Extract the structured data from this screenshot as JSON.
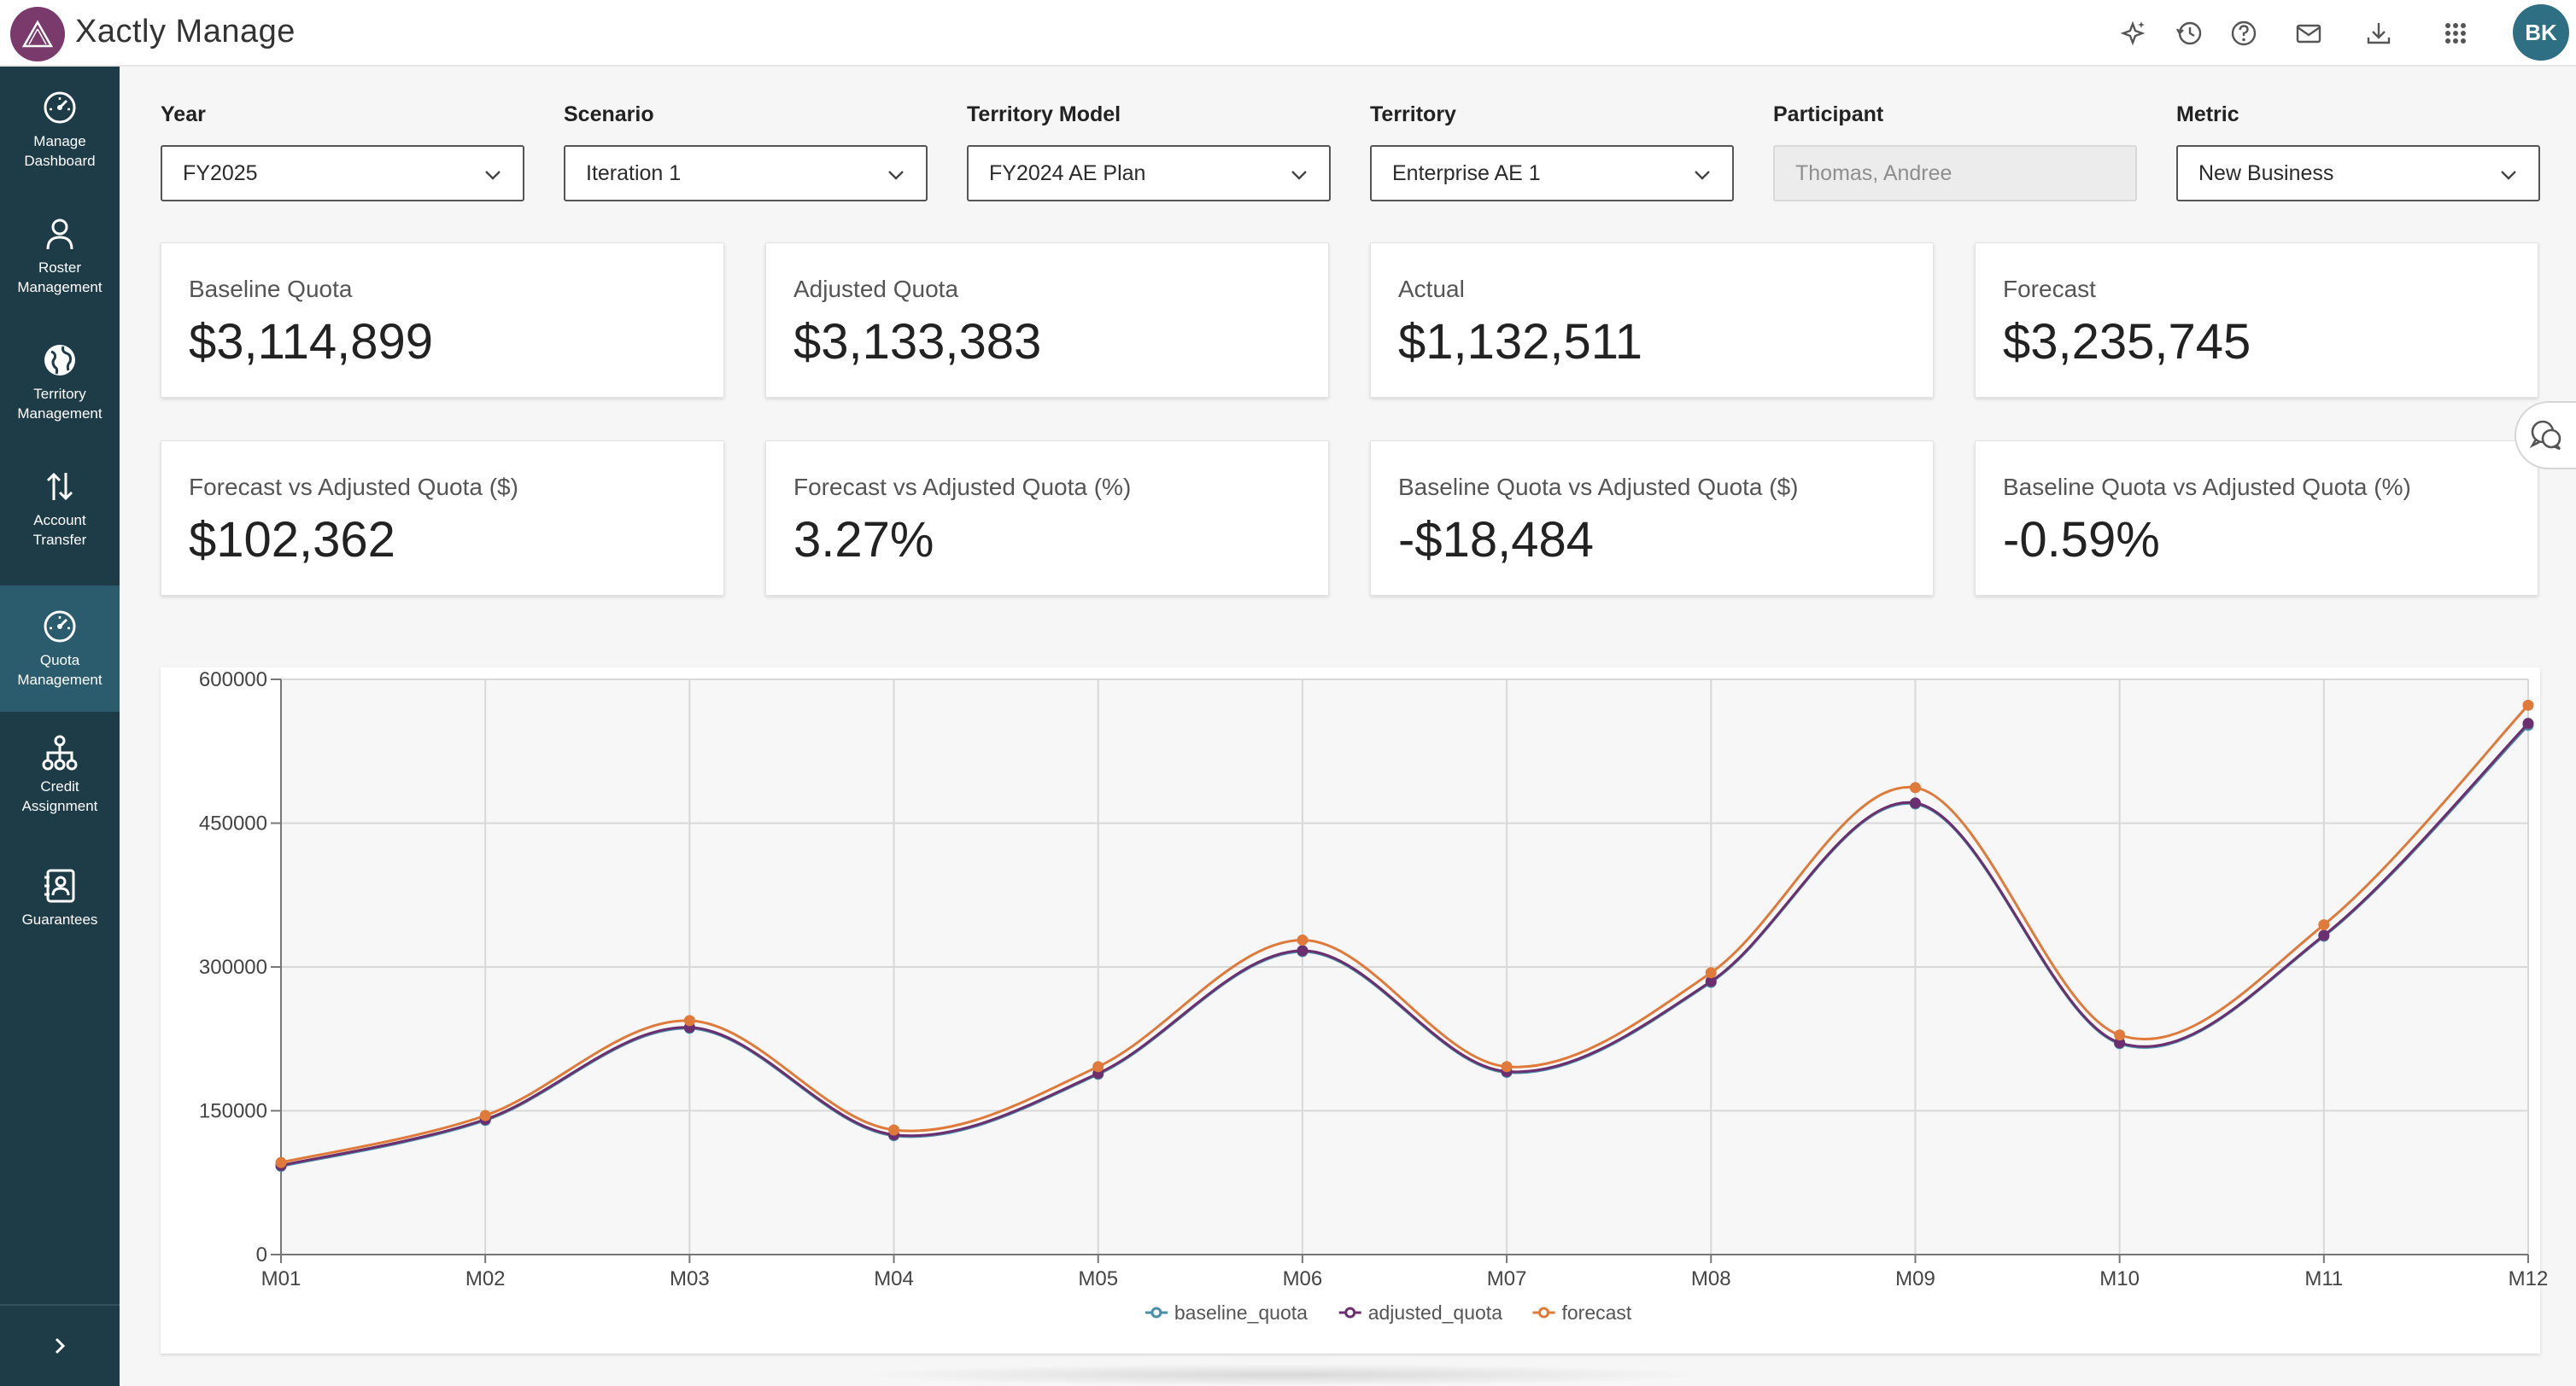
{
  "app": {
    "title": "Xactly Manage",
    "user_initials": "BK",
    "brand_color": "#7a3a6b",
    "sidebar_color": "#1d3c48",
    "active_nav_color": "#2a5c6d"
  },
  "header_icons": [
    "sparkle-icon",
    "history-icon",
    "help-icon",
    "mail-icon",
    "download-icon",
    "apps-grid-icon"
  ],
  "sidebar": {
    "items": [
      {
        "label": "Manage Dashboard",
        "icon": "gauge-icon"
      },
      {
        "label": "Roster Management",
        "icon": "person-icon"
      },
      {
        "label": "Territory Management",
        "icon": "globe-icon"
      },
      {
        "label": "Account Transfer",
        "icon": "transfer-arrows-icon"
      },
      {
        "label": "Quota Management",
        "icon": "gauge-icon",
        "active": true
      },
      {
        "label": "Credit Assignment",
        "icon": "hierarchy-icon"
      },
      {
        "label": "Guarantees",
        "icon": "contact-book-icon"
      }
    ],
    "collapse_icon": "chevron-right-icon"
  },
  "filters": {
    "year": {
      "label": "Year",
      "value": "FY2025"
    },
    "scenario": {
      "label": "Scenario",
      "value": "Iteration 1"
    },
    "territory_model": {
      "label": "Territory Model",
      "value": "FY2024 AE Plan"
    },
    "territory": {
      "label": "Territory",
      "value": "Enterprise AE 1"
    },
    "participant": {
      "label": "Participant",
      "value": "Thomas, Andree"
    },
    "metric": {
      "label": "Metric",
      "value": "New Business"
    }
  },
  "kpis": [
    {
      "label": "Baseline Quota",
      "value": "$3,114,899"
    },
    {
      "label": "Adjusted Quota",
      "value": "$3,133,383"
    },
    {
      "label": "Actual",
      "value": "$1,132,511"
    },
    {
      "label": "Forecast",
      "value": "$3,235,745"
    },
    {
      "label": "Forecast vs Adjusted Quota ($)",
      "value": "$102,362"
    },
    {
      "label": "Forecast vs Adjusted Quota (%)",
      "value": "3.27%"
    },
    {
      "label": "Baseline Quota vs Adjusted Quota ($)",
      "value": "-$18,484"
    },
    {
      "label": "Baseline Quota vs Adjusted Quota (%)",
      "value": "-0.59%"
    }
  ],
  "chart_data": {
    "type": "line",
    "categories": [
      "M01",
      "M02",
      "M03",
      "M04",
      "M05",
      "M06",
      "M07",
      "M08",
      "M09",
      "M10",
      "M11",
      "M12"
    ],
    "ylim": [
      0,
      600000
    ],
    "yticks": [
      0,
      150000,
      300000,
      450000,
      600000
    ],
    "grid": true,
    "legend_position": "bottom-center",
    "series": [
      {
        "name": "baseline_quota",
        "color": "#4a8fa8",
        "values": [
          92000,
          140000,
          236000,
          124000,
          188000,
          316000,
          190000,
          284000,
          470000,
          220000,
          332000,
          552000
        ]
      },
      {
        "name": "adjusted_quota",
        "color": "#6b2f6f",
        "values": [
          93000,
          141000,
          237000,
          125000,
          189000,
          317000,
          191000,
          285000,
          471000,
          221000,
          333000,
          554000
        ]
      },
      {
        "name": "forecast",
        "color": "#e07a3a",
        "values": [
          96000,
          145000,
          244000,
          130000,
          196000,
          328000,
          196000,
          294000,
          487000,
          229000,
          344000,
          573000
        ]
      }
    ]
  }
}
